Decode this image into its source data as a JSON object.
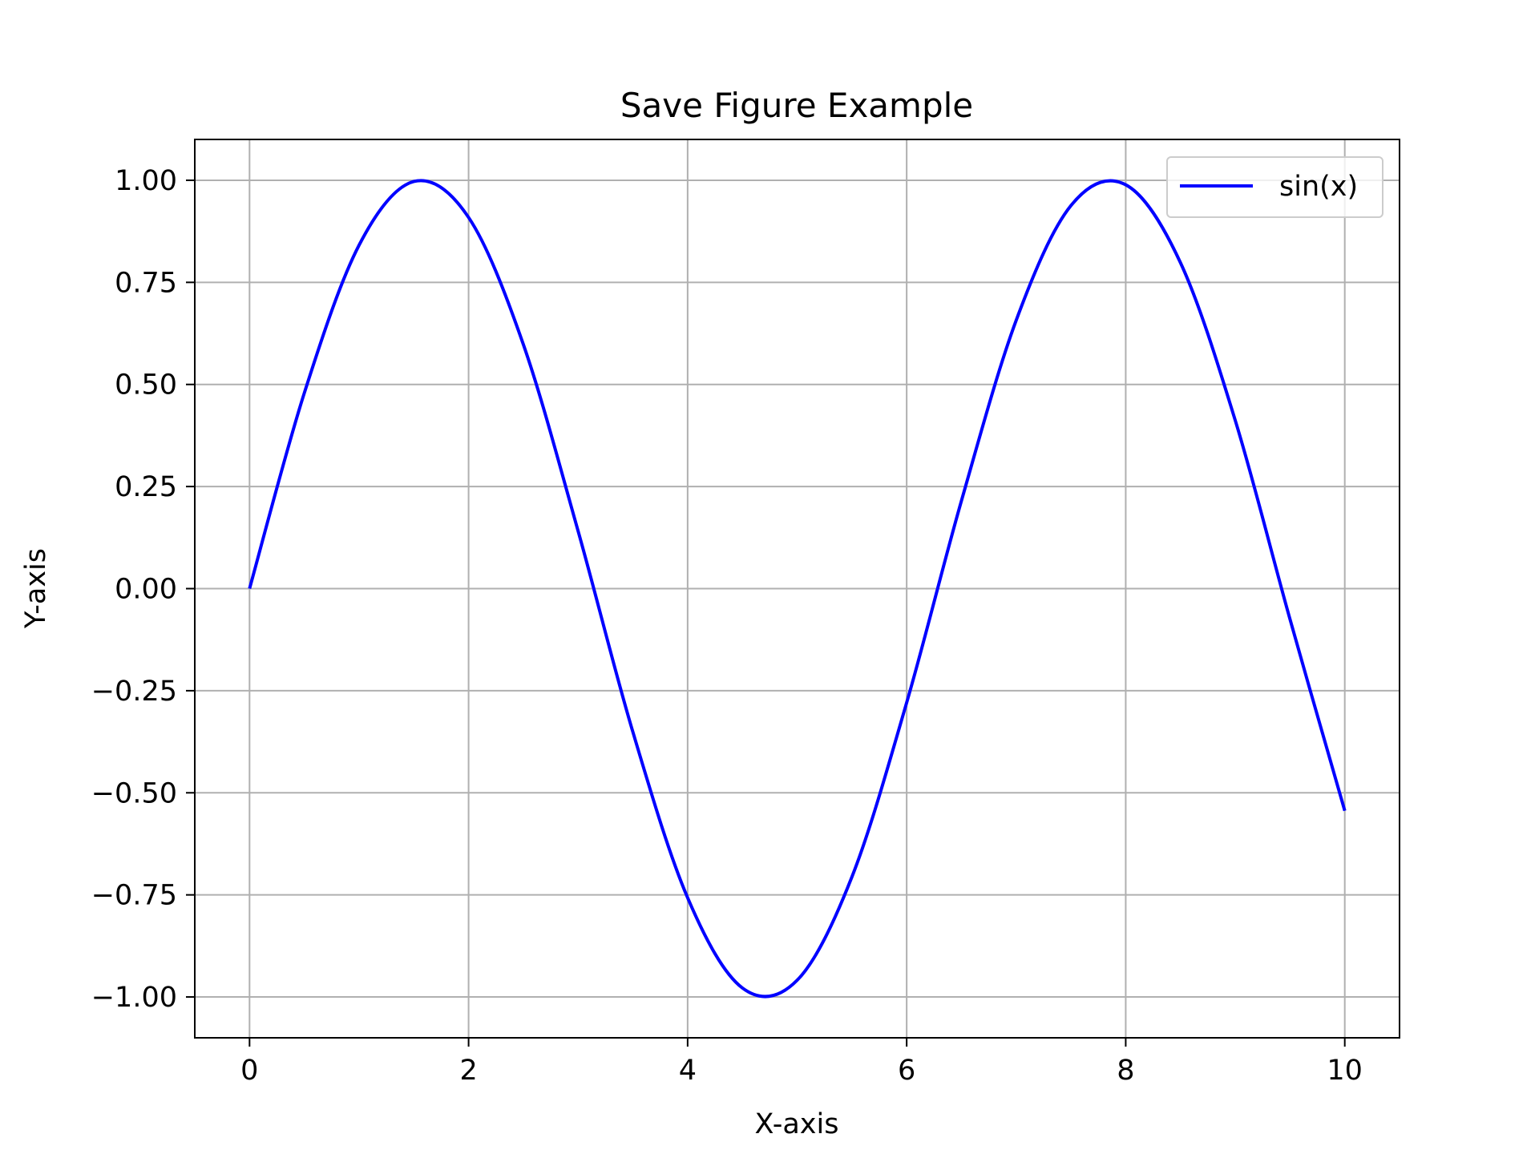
{
  "chart_data": {
    "type": "line",
    "title": "Save Figure Example",
    "xlabel": "X-axis",
    "ylabel": "Y-axis",
    "xlim": [
      -0.5,
      10.5
    ],
    "ylim": [
      -1.1,
      1.1
    ],
    "xticks": [
      0,
      2,
      4,
      6,
      8,
      10
    ],
    "xtick_labels": [
      "0",
      "2",
      "4",
      "6",
      "8",
      "10"
    ],
    "yticks": [
      -1.0,
      -0.75,
      -0.5,
      -0.25,
      0.0,
      0.25,
      0.5,
      0.75,
      1.0
    ],
    "ytick_labels": [
      "−1.00",
      "−0.75",
      "−0.50",
      "−0.25",
      "0.00",
      "0.25",
      "0.50",
      "0.75",
      "1.00"
    ],
    "grid": true,
    "legend_position": "top-right",
    "series": [
      {
        "name": "sin(x)",
        "color": "#0000ff",
        "x": [
          0,
          0.5,
          1,
          1.5,
          2,
          2.5,
          3,
          3.5,
          4,
          4.5,
          5,
          5.5,
          6,
          6.5,
          7,
          7.5,
          8,
          8.5,
          9,
          9.5,
          10
        ],
        "y": [
          0.0,
          0.479,
          0.841,
          0.997,
          0.909,
          0.598,
          0.141,
          -0.351,
          -0.757,
          -0.978,
          -0.959,
          -0.706,
          -0.279,
          0.215,
          0.657,
          0.938,
          0.989,
          0.798,
          0.412,
          -0.075,
          -0.544
        ]
      }
    ]
  }
}
